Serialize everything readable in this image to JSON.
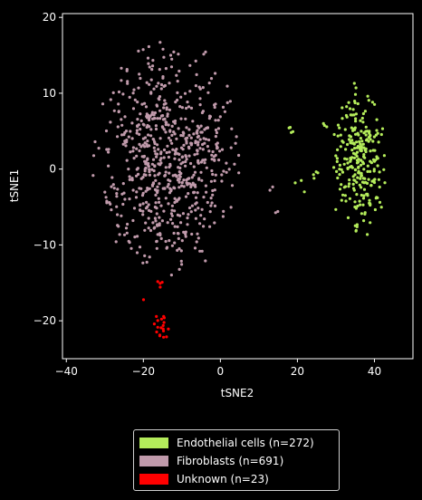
{
  "chart_data": {
    "type": "scatter",
    "xlabel": "tSNE2",
    "ylabel": "tSNE1",
    "xlim": [
      -41,
      50
    ],
    "ylim": [
      -25,
      20.5
    ],
    "xticks": [
      -40,
      -20,
      0,
      20,
      40
    ],
    "yticks": [
      -20,
      -10,
      0,
      10,
      20
    ],
    "grid": false,
    "legend_position": "bottom-center",
    "series": [
      {
        "name": "Endothelial cells (n=272)",
        "color": "#b4ec5b",
        "n": 272,
        "clusters": [
          {
            "center": [
              36,
              1
            ],
            "spread": [
              3.4,
              4.6
            ],
            "count": 258
          },
          {
            "center": [
              18,
              5.2
            ],
            "spread": [
              0.7,
              0.4
            ],
            "count": 4
          },
          {
            "center": [
              24.5,
              -0.8
            ],
            "spread": [
              0.6,
              0.5
            ],
            "count": 4
          },
          {
            "center": [
              20.5,
              -2
            ],
            "spread": [
              1.2,
              0.6
            ],
            "count": 3
          },
          {
            "center": [
              27,
              5.8
            ],
            "spread": [
              0.4,
              0.4
            ],
            "count": 3
          }
        ]
      },
      {
        "name": "Fibroblasts (n=691)",
        "color": "#c09aab",
        "n": 691,
        "clusters": [
          {
            "center": [
              -14,
              1.5
            ],
            "spread": [
              8.5,
              7.2
            ],
            "count": 687
          },
          {
            "center": [
              12,
              -2.8
            ],
            "spread": [
              1.5,
              0.5
            ],
            "count": 2
          },
          {
            "center": [
              15,
              -5.5
            ],
            "spread": [
              0.4,
              0.4
            ],
            "count": 2
          }
        ]
      },
      {
        "name": "Unknown (n=23)",
        "color": "#ff0000",
        "n": 23,
        "clusters": [
          {
            "center": [
              -15,
              -21
            ],
            "spread": [
              1.1,
              0.9
            ],
            "count": 18
          },
          {
            "center": [
              -15.5,
              -15.5
            ],
            "spread": [
              0.5,
              0.5
            ],
            "count": 4
          },
          {
            "center": [
              -20,
              -17.5
            ],
            "spread": [
              0.2,
              0.2
            ],
            "count": 1
          }
        ]
      }
    ]
  }
}
